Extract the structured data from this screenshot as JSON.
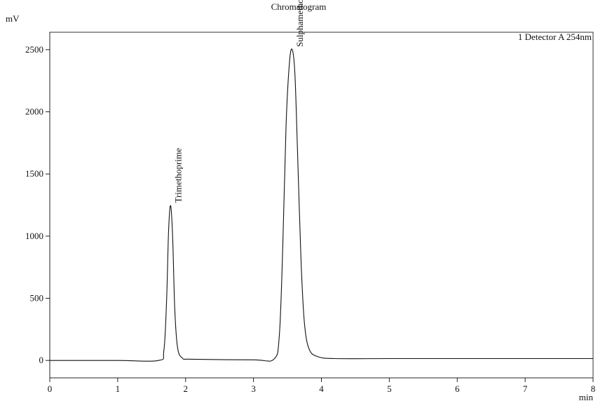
{
  "chart_data": {
    "type": "line",
    "title": "Chromatogram",
    "xlabel": "min",
    "ylabel": "mV",
    "xlim": [
      0,
      8
    ],
    "ylim": [
      -140,
      2640
    ],
    "grid": false,
    "xticks": [
      0,
      1,
      2,
      3,
      4,
      5,
      6,
      7,
      8
    ],
    "yticks": [
      0,
      500,
      1000,
      1500,
      2000,
      2500
    ],
    "xtick_labels": [
      "0",
      "1",
      "2",
      "3",
      "4",
      "5",
      "6",
      "7",
      "8"
    ],
    "ytick_labels": [
      "0",
      "500",
      "1000",
      "1500",
      "2000",
      "2500"
    ],
    "legend": "top-right",
    "series": [
      {
        "name": "1 Detector A 254nm",
        "color": "#111111",
        "x": [
          0.0,
          1.0,
          1.6,
          1.68,
          1.72,
          1.75,
          1.78,
          1.81,
          1.84,
          1.88,
          1.95,
          2.1,
          3.0,
          3.3,
          3.38,
          3.43,
          3.48,
          3.53,
          3.57,
          3.61,
          3.65,
          3.7,
          3.75,
          3.82,
          3.95,
          4.2,
          5.0,
          6.0,
          7.0,
          8.0
        ],
        "y": [
          0,
          0,
          0,
          80,
          480,
          1050,
          1245,
          980,
          420,
          110,
          20,
          10,
          5,
          10,
          200,
          900,
          1900,
          2400,
          2500,
          2300,
          1650,
          800,
          300,
          90,
          30,
          15,
          15,
          15,
          15,
          15
        ]
      }
    ],
    "annotations": [
      {
        "text": "Trimethoprime",
        "x": 1.78,
        "y": 1245
      },
      {
        "text": "Sulphamethoxazole",
        "x": 3.57,
        "y": 2500
      }
    ]
  }
}
